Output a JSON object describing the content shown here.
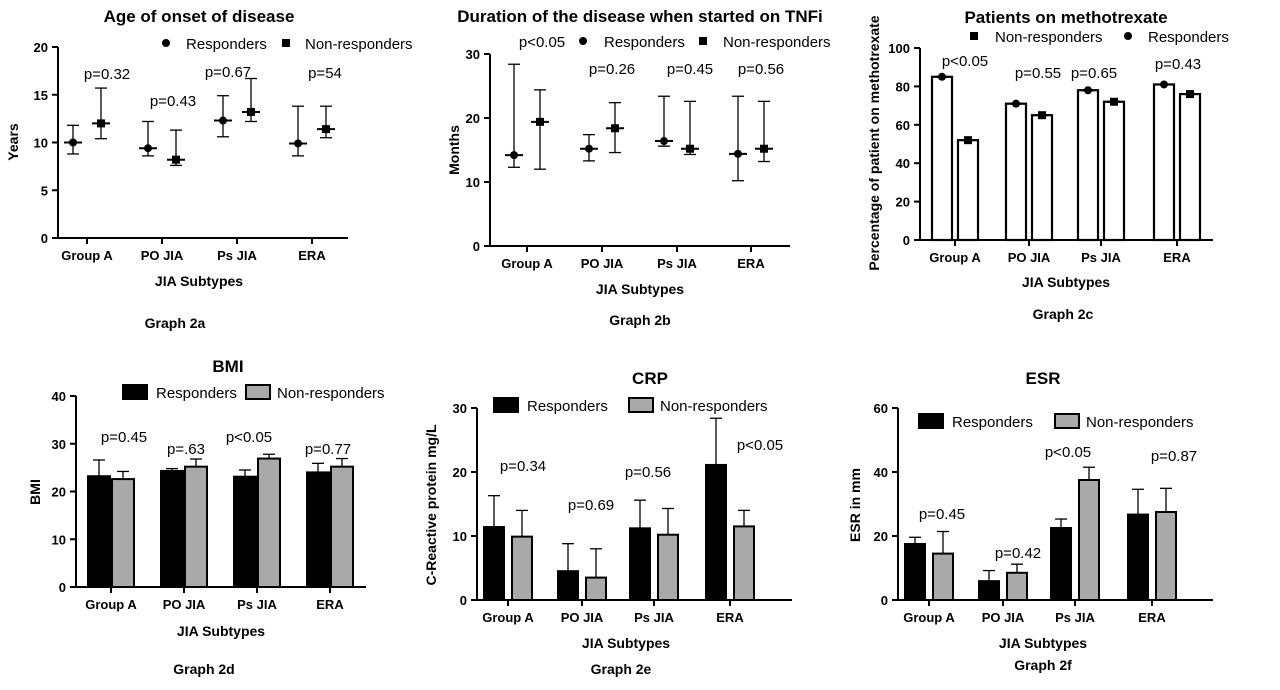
{
  "colors": {
    "responders": "#000000",
    "non_responders": "#a9a9a9",
    "white": "#ffffff"
  },
  "chart_data": [
    {
      "type": "scatter",
      "title": "Age of onset of disease",
      "graph_label": "Graph 2a",
      "xlabel": "JIA Subtypes",
      "ylabel": "Years",
      "ylim": [
        0,
        20
      ],
      "yticks": [
        0,
        5,
        10,
        15,
        20
      ],
      "categories": [
        "Group A",
        "PO JIA",
        "Ps JIA",
        "ERA"
      ],
      "legend": [
        "Responders",
        "Non-responders"
      ],
      "legend_markers": [
        "circle",
        "square"
      ],
      "series": [
        {
          "name": "Responders",
          "marker": "circle",
          "values": [
            10.0,
            9.4,
            12.3,
            9.9
          ],
          "err_low": [
            8.8,
            8.6,
            10.6,
            8.6
          ],
          "err_high": [
            11.8,
            12.2,
            14.9,
            13.8
          ]
        },
        {
          "name": "Non-responders",
          "marker": "square",
          "values": [
            12.0,
            8.2,
            13.2,
            11.4
          ],
          "err_low": [
            10.4,
            7.6,
            12.2,
            10.5
          ],
          "err_high": [
            15.7,
            11.3,
            16.7,
            13.8
          ]
        }
      ],
      "pvalues": [
        "p=0.32",
        "p=0.43",
        "p=0.67",
        "p=54"
      ]
    },
    {
      "type": "scatter",
      "title": "Duration of the disease when started on TNFi",
      "graph_label": "Graph 2b",
      "xlabel": "JIA Subtypes",
      "ylabel": "Months",
      "ylim": [
        0,
        30
      ],
      "yticks": [
        0,
        10,
        20,
        30
      ],
      "categories": [
        "Group A",
        "PO JIA",
        "Ps JIA",
        "ERA"
      ],
      "legend": [
        "Responders",
        "Non-responders"
      ],
      "legend_markers": [
        "circle",
        "square"
      ],
      "series": [
        {
          "name": "Responders",
          "marker": "circle",
          "values": [
            14.2,
            15.2,
            16.4,
            14.4
          ],
          "err_low": [
            12.3,
            13.3,
            15.6,
            10.2
          ],
          "err_high": [
            28.4,
            17.4,
            23.4,
            23.4
          ]
        },
        {
          "name": "Non-responders",
          "marker": "square",
          "values": [
            19.4,
            18.4,
            15.2,
            15.2
          ],
          "err_low": [
            12.0,
            14.6,
            14.3,
            13.2
          ],
          "err_high": [
            24.4,
            22.4,
            22.6,
            22.6
          ]
        }
      ],
      "pvalues": [
        "p<0.05",
        "p=0.26",
        "p=0.45",
        "p=0.56"
      ]
    },
    {
      "type": "bar",
      "style": "outlined",
      "title": "Patients on methotrexate",
      "graph_label": "Graph 2c",
      "xlabel": "JIA Subtypes",
      "ylabel": "Percentage of patient on methotrexate",
      "ylim": [
        0,
        100
      ],
      "yticks": [
        0,
        20,
        40,
        60,
        80,
        100
      ],
      "categories": [
        "Group A",
        "PO JIA",
        "Ps JIA",
        "ERA"
      ],
      "legend": [
        "Non-responders",
        "Responders"
      ],
      "legend_markers": [
        "square",
        "circle"
      ],
      "series": [
        {
          "name": "Responders",
          "marker": "circle",
          "values": [
            85,
            71,
            78,
            81
          ]
        },
        {
          "name": "Non-responders",
          "marker": "square",
          "values": [
            52,
            65,
            72,
            76
          ]
        }
      ],
      "pvalues": [
        "p<0.05",
        "p=0.55",
        "p=0.65",
        "p=0.43"
      ]
    },
    {
      "type": "bar",
      "title": "BMI",
      "graph_label": "Graph 2d",
      "xlabel": "JIA Subtypes",
      "ylabel": "BMI",
      "ylim": [
        0,
        40
      ],
      "yticks": [
        0,
        10,
        20,
        30,
        40
      ],
      "categories": [
        "Group A",
        "PO JIA",
        "Ps JIA",
        "ERA"
      ],
      "legend": [
        "Responders",
        "Non-responders"
      ],
      "series": [
        {
          "name": "Responders",
          "values": [
            23.2,
            24.3,
            23.1,
            24.0
          ],
          "err_high": [
            26.6,
            24.8,
            24.5,
            25.9
          ]
        },
        {
          "name": "Non-responders",
          "values": [
            22.6,
            25.2,
            26.9,
            25.2
          ],
          "err_high": [
            24.2,
            26.8,
            27.8,
            26.9
          ]
        }
      ],
      "pvalues": [
        "p=0.45",
        "p=.63",
        "p<0.05",
        "p=0.77"
      ]
    },
    {
      "type": "bar",
      "title": "CRP",
      "graph_label": "Graph 2e",
      "xlabel": "JIA Subtypes",
      "ylabel": "C-Reactive protein mg/L",
      "ylim": [
        0,
        30
      ],
      "yticks": [
        0,
        10,
        20,
        30
      ],
      "categories": [
        "Group A",
        "PO JIA",
        "Ps JIA",
        "ERA"
      ],
      "legend": [
        "Responders",
        "Non-responders"
      ],
      "series": [
        {
          "name": "Responders",
          "values": [
            11.4,
            4.5,
            11.2,
            21.1
          ],
          "err_high": [
            16.3,
            8.8,
            15.6,
            28.4
          ]
        },
        {
          "name": "Non-responders",
          "values": [
            9.9,
            3.5,
            10.2,
            11.5
          ],
          "err_high": [
            14.0,
            8.0,
            14.3,
            14.0
          ]
        }
      ],
      "pvalues": [
        "p=0.34",
        "p=0.69",
        "p=0.56",
        "p<0.05"
      ]
    },
    {
      "type": "bar",
      "title": "ESR",
      "graph_label": "Graph 2f",
      "xlabel": "JIA Subtypes",
      "ylabel": "ESR in mm",
      "ylim": [
        0,
        60
      ],
      "yticks": [
        0,
        20,
        40,
        60
      ],
      "categories": [
        "Group A",
        "PO JIA",
        "Ps JIA",
        "ERA"
      ],
      "legend": [
        "Responders",
        "Non-responders"
      ],
      "series": [
        {
          "name": "Responders",
          "values": [
            17.5,
            5.9,
            22.5,
            26.7
          ],
          "err_high": [
            19.6,
            9.2,
            25.3,
            34.6
          ]
        },
        {
          "name": "Non-responders",
          "values": [
            14.5,
            8.5,
            37.5,
            27.5
          ],
          "err_high": [
            21.4,
            11.2,
            41.5,
            34.9
          ]
        }
      ],
      "pvalues": [
        "p=0.45",
        "p=0.42",
        "p<0.05",
        "p=0.87"
      ]
    }
  ]
}
